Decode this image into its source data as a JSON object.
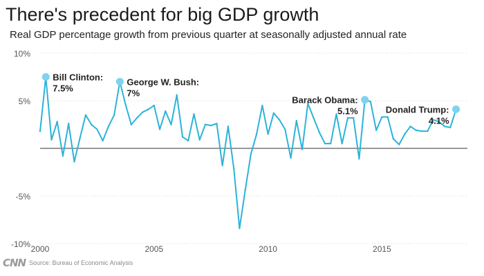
{
  "header": {
    "title": "There's precedent for big GDP growth",
    "subtitle": "Real GDP percentage growth from previous quarter at seasonally adjusted annual rate"
  },
  "footer": {
    "logo": "CNN",
    "source": "Source: Bureau of Economic Analysis"
  },
  "colors": {
    "line": "#2bb3d8",
    "marker": "#7fd3ee",
    "zero_line": "#333333",
    "grid": "#d0d0d0",
    "tick_text": "#555555"
  },
  "chart_data": {
    "type": "line",
    "title": "There's precedent for big GDP growth",
    "subtitle": "Real GDP percentage growth from previous quarter at seasonally adjusted annual rate",
    "xlabel": "",
    "ylabel": "",
    "xlim": [
      2000.0,
      2018.75
    ],
    "ylim": [
      -10,
      10
    ],
    "grid": "horizontal dotted",
    "x_ticks": [
      {
        "value": 2000,
        "label": "2000"
      },
      {
        "value": 2005,
        "label": "2005"
      },
      {
        "value": 2010,
        "label": "2010"
      },
      {
        "value": 2015,
        "label": "2015"
      }
    ],
    "y_ticks": [
      {
        "value": 10,
        "label": "10%"
      },
      {
        "value": 5,
        "label": "5%"
      },
      {
        "value": -5,
        "label": "-5%"
      },
      {
        "value": -10,
        "label": "-10%"
      }
    ],
    "series": [
      {
        "x": [
          2000.0,
          2000.25,
          2000.5,
          2000.75,
          2001.0,
          2001.25,
          2001.5,
          2001.75,
          2002.0,
          2002.25,
          2002.5,
          2002.75,
          2003.0,
          2003.25,
          2003.5,
          2003.75,
          2004.0,
          2004.25,
          2004.5,
          2004.75,
          2005.0,
          2005.25,
          2005.5,
          2005.75,
          2006.0,
          2006.25,
          2006.5,
          2006.75,
          2007.0,
          2007.25,
          2007.5,
          2007.75,
          2008.0,
          2008.25,
          2008.5,
          2008.75,
          2009.0,
          2009.25,
          2009.5,
          2009.75,
          2010.0,
          2010.25,
          2010.5,
          2010.75,
          2011.0,
          2011.25,
          2011.5,
          2011.75,
          2012.0,
          2012.25,
          2012.5,
          2012.75,
          2013.0,
          2013.25,
          2013.5,
          2013.75,
          2014.0,
          2014.25,
          2014.5,
          2014.75,
          2015.0,
          2015.25,
          2015.5,
          2015.75,
          2016.0,
          2016.25,
          2016.5,
          2016.75,
          2017.0,
          2017.25,
          2017.5,
          2017.75,
          2018.0,
          2018.25
        ],
        "values": [
          1.8,
          7.5,
          0.9,
          2.8,
          -0.8,
          2.6,
          -1.4,
          1.1,
          3.5,
          2.5,
          2.0,
          0.8,
          2.3,
          3.5,
          7.0,
          4.6,
          2.5,
          3.2,
          3.8,
          4.1,
          4.5,
          2.0,
          3.9,
          2.5,
          5.6,
          1.2,
          0.8,
          3.6,
          0.9,
          2.5,
          2.4,
          2.6,
          -1.8,
          2.3,
          -2.1,
          -8.4,
          -4.4,
          -0.6,
          1.5,
          4.5,
          1.5,
          3.7,
          3.0,
          2.0,
          -1.0,
          2.9,
          -0.1,
          4.7,
          3.2,
          1.7,
          0.5,
          0.5,
          3.6,
          0.5,
          3.2,
          3.2,
          -1.1,
          5.1,
          4.9,
          1.9,
          3.3,
          3.3,
          1.0,
          0.4,
          1.5,
          2.3,
          1.9,
          1.8,
          1.8,
          3.0,
          2.8,
          2.3,
          2.2,
          4.1
        ]
      }
    ],
    "annotations": [
      {
        "name": "bill-clinton",
        "x": 2000.25,
        "y": 7.5,
        "line1": "Bill Clinton:",
        "line2": "7.5%",
        "align": "left"
      },
      {
        "name": "george-w-bush",
        "x": 2003.5,
        "y": 7.0,
        "line1": "George W. Bush:",
        "line2": "7%",
        "align": "left"
      },
      {
        "name": "barack-obama",
        "x": 2014.25,
        "y": 5.1,
        "line1": "Barack Obama:",
        "line2": "5.1%",
        "align": "right"
      },
      {
        "name": "donald-trump",
        "x": 2018.25,
        "y": 4.1,
        "line1": "Donald Trump:",
        "line2": "4.1%",
        "align": "right"
      }
    ]
  }
}
